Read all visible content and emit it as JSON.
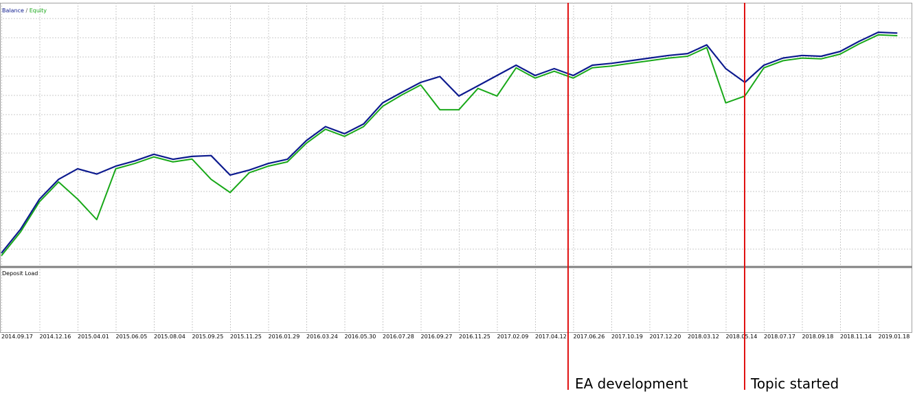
{
  "chart_data": {
    "type": "line",
    "legend_separator": " / ",
    "subwindow_title": "Deposit Load",
    "categories": [
      "2014.09.17",
      null,
      "2014.12.16",
      null,
      "2015.04.01",
      null,
      "2015.06.05",
      null,
      "2015.08.04",
      null,
      "2015.09.25",
      null,
      "2015.11.25",
      null,
      "2016.01.29",
      null,
      "2016.03.24",
      null,
      "2016.05.30",
      null,
      "2016.07.28",
      null,
      "2016.09.27",
      null,
      "2016.11.25",
      null,
      "2017.02.09",
      null,
      "2017.04.12",
      null,
      "2017.06.26",
      null,
      "2017.10.19",
      null,
      "2017.12.20",
      null,
      "2018.03.12",
      null,
      "2018.05.14",
      null,
      "2018.07.17",
      null,
      "2018.09.18",
      null,
      "2018.11.14",
      null,
      "2019.01.18",
      null
    ],
    "series": [
      {
        "name": "Equity",
        "color": "#18a818",
        "values": [
          4,
          13,
          24.5,
          32,
          25.5,
          17.7,
          37,
          39,
          41.5,
          39.6,
          40.7,
          33,
          28,
          35.5,
          38,
          39.6,
          46.7,
          52,
          49.3,
          53,
          60.7,
          65,
          68.8,
          59.4,
          59.4,
          67.5,
          64.6,
          75.3,
          71.4,
          74,
          71.4,
          75.3,
          76,
          77,
          78,
          79,
          79.7,
          83,
          62,
          64.6,
          75.3,
          78,
          79,
          78.7,
          80.5,
          84.4,
          87.8,
          87.5
        ]
      },
      {
        "name": "Balance",
        "color": "#0c1a8e",
        "values": [
          5,
          14,
          25.5,
          33,
          37,
          35,
          38,
          40,
          42.5,
          40.6,
          41.7,
          42,
          34.6,
          36.5,
          39,
          40.6,
          47.7,
          53,
          50.3,
          54,
          62,
          66,
          69.8,
          72,
          64.6,
          68.5,
          72.4,
          76.3,
          72.4,
          75,
          72.4,
          76.3,
          77,
          78,
          79,
          80,
          80.7,
          84,
          75,
          69.8,
          76.3,
          79,
          80,
          79.7,
          81.5,
          85.4,
          88.8,
          88.5
        ]
      }
    ],
    "ylim": [
      0,
      100
    ],
    "grid": true,
    "annotations": [
      {
        "text": "EA development"
      },
      {
        "text": "Topic started"
      }
    ]
  }
}
